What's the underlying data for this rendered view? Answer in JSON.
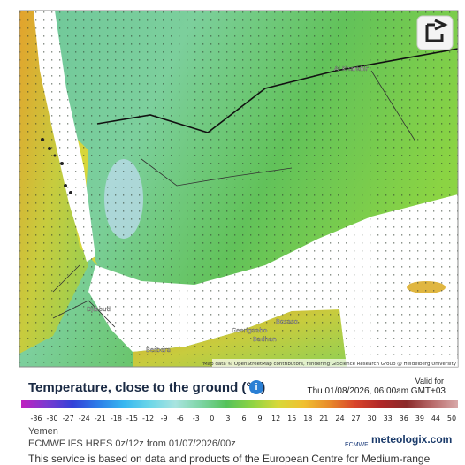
{
  "map": {
    "places": [
      "Al Kharkhir",
      "Djibouti",
      "Berbera",
      "Ceerigaabo",
      "Badhan",
      "Bosaso"
    ],
    "attribution": "Map data © OpenStreetMap contributors, rendering GIScience Research Group @ Heidelberg University"
  },
  "legend": {
    "title": "Temperature, close to the ground (°C)",
    "valid_label": "Valid for",
    "valid_time": "Thu 01/08/2026, 06:00am GMT+03",
    "ticks": [
      -36,
      -30,
      -27,
      -24,
      -21,
      -18,
      -15,
      -12,
      -9,
      -6,
      -3,
      0,
      3,
      6,
      9,
      12,
      15,
      18,
      21,
      24,
      27,
      30,
      33,
      36,
      39,
      44,
      50
    ]
  },
  "info": {
    "region": "Yemen",
    "model": "ECMWF IFS HRES 0z/12z from 01/07/2026/00z",
    "ecmwf": "ECMWF",
    "brand": "meteologix.com",
    "footer": "This service is based on data and products of the European Centre for Medium-range"
  }
}
